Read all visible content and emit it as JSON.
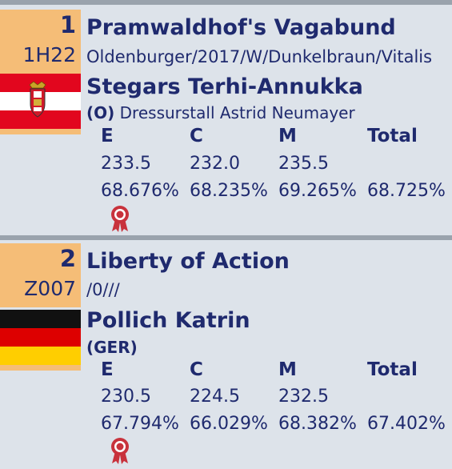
{
  "columns": [
    "E",
    "C",
    "M",
    "Total"
  ],
  "entries": [
    {
      "rank": "1",
      "horse_id": "1H22",
      "horse_name": "Pramwaldhof's Vagabund",
      "horse_info": "Oldenburger/2017/W/Dunkelbraun/Vitalis",
      "rider": "Stegars Terhi-Annukka",
      "club_code": "(O)",
      "club_name": "Dressurstall Astrid Neumayer",
      "flag": "austria-flag-with-crest-icon",
      "scores": [
        "233.5",
        "232.0",
        "235.5"
      ],
      "percents": [
        "68.676%",
        "68.235%",
        "69.265%",
        "68.725%"
      ],
      "award_icon": "rosette-icon"
    },
    {
      "rank": "2",
      "horse_id": "Z007",
      "horse_name": "Liberty of Action",
      "horse_info": "/0///",
      "rider": "Pollich Katrin",
      "club_code": "(GER)",
      "club_name": "",
      "flag": "germany-flag-icon",
      "scores": [
        "230.5",
        "224.5",
        "232.5"
      ],
      "percents": [
        "67.794%",
        "66.029%",
        "68.382%",
        "67.402%"
      ],
      "award_icon": "rosette-icon"
    }
  ],
  "colors": {
    "background": "#dde3ea",
    "rank_box": "#f5bd77",
    "text": "#1f2a6e",
    "divider": "#9aa3ad",
    "rosette": "#c8323c"
  }
}
